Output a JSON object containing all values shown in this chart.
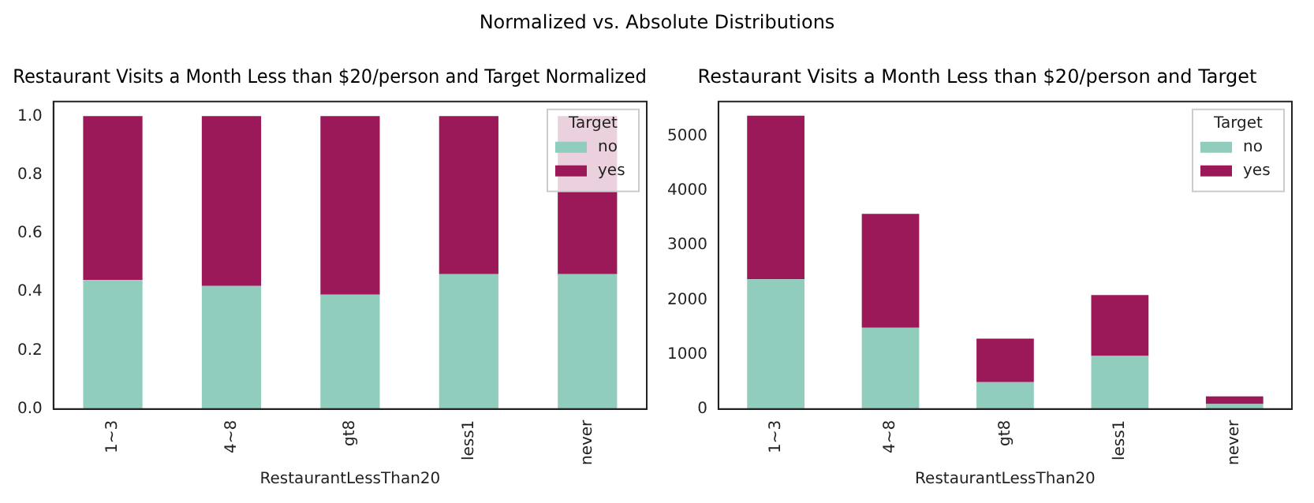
{
  "chart_data": [
    {
      "type": "bar",
      "title": "Restaurant Visits a Month Less than $20/person and Target Normalized",
      "annotations": [
        "Normalized vs. Absolute Distributions"
      ],
      "xlabel": "RestaurantLessThan20",
      "legend_title": "Target",
      "categories": [
        "1~3",
        "4~8",
        "gt8",
        "less1",
        "never"
      ],
      "stacked": true,
      "series": [
        {
          "name": "no",
          "color": "#91cdbd",
          "values": [
            0.44,
            0.42,
            0.39,
            0.46,
            0.46
          ]
        },
        {
          "name": "yes",
          "color": "#9b1958",
          "values": [
            0.56,
            0.58,
            0.61,
            0.54,
            0.54
          ]
        }
      ],
      "ylim": [
        0,
        1.05
      ],
      "yticks": [
        {
          "value": 0,
          "label": "0.0"
        },
        0.2,
        0.4,
        0.6,
        0.8,
        {
          "value": 1,
          "label": "1.0"
        }
      ],
      "grid": false,
      "legend": "top right"
    },
    {
      "type": "bar",
      "title": "Restaurant Visits a Month Less than $20/person and Target",
      "xlabel": "RestaurantLessThan20",
      "legend_title": "Target",
      "categories": [
        "1~3",
        "4~8",
        "gt8",
        "less1",
        "never"
      ],
      "stacked": true,
      "series": [
        {
          "name": "no",
          "color": "#91cdbd",
          "values": [
            2380,
            1490,
            490,
            970,
            90
          ]
        },
        {
          "name": "yes",
          "color": "#9b1958",
          "values": [
            3000,
            2090,
            800,
            1120,
            140
          ]
        }
      ],
      "ylim": [
        0,
        5640
      ],
      "yticks": [
        0,
        1000,
        2000,
        3000,
        4000,
        5000
      ],
      "grid": false,
      "legend": "top right"
    }
  ]
}
